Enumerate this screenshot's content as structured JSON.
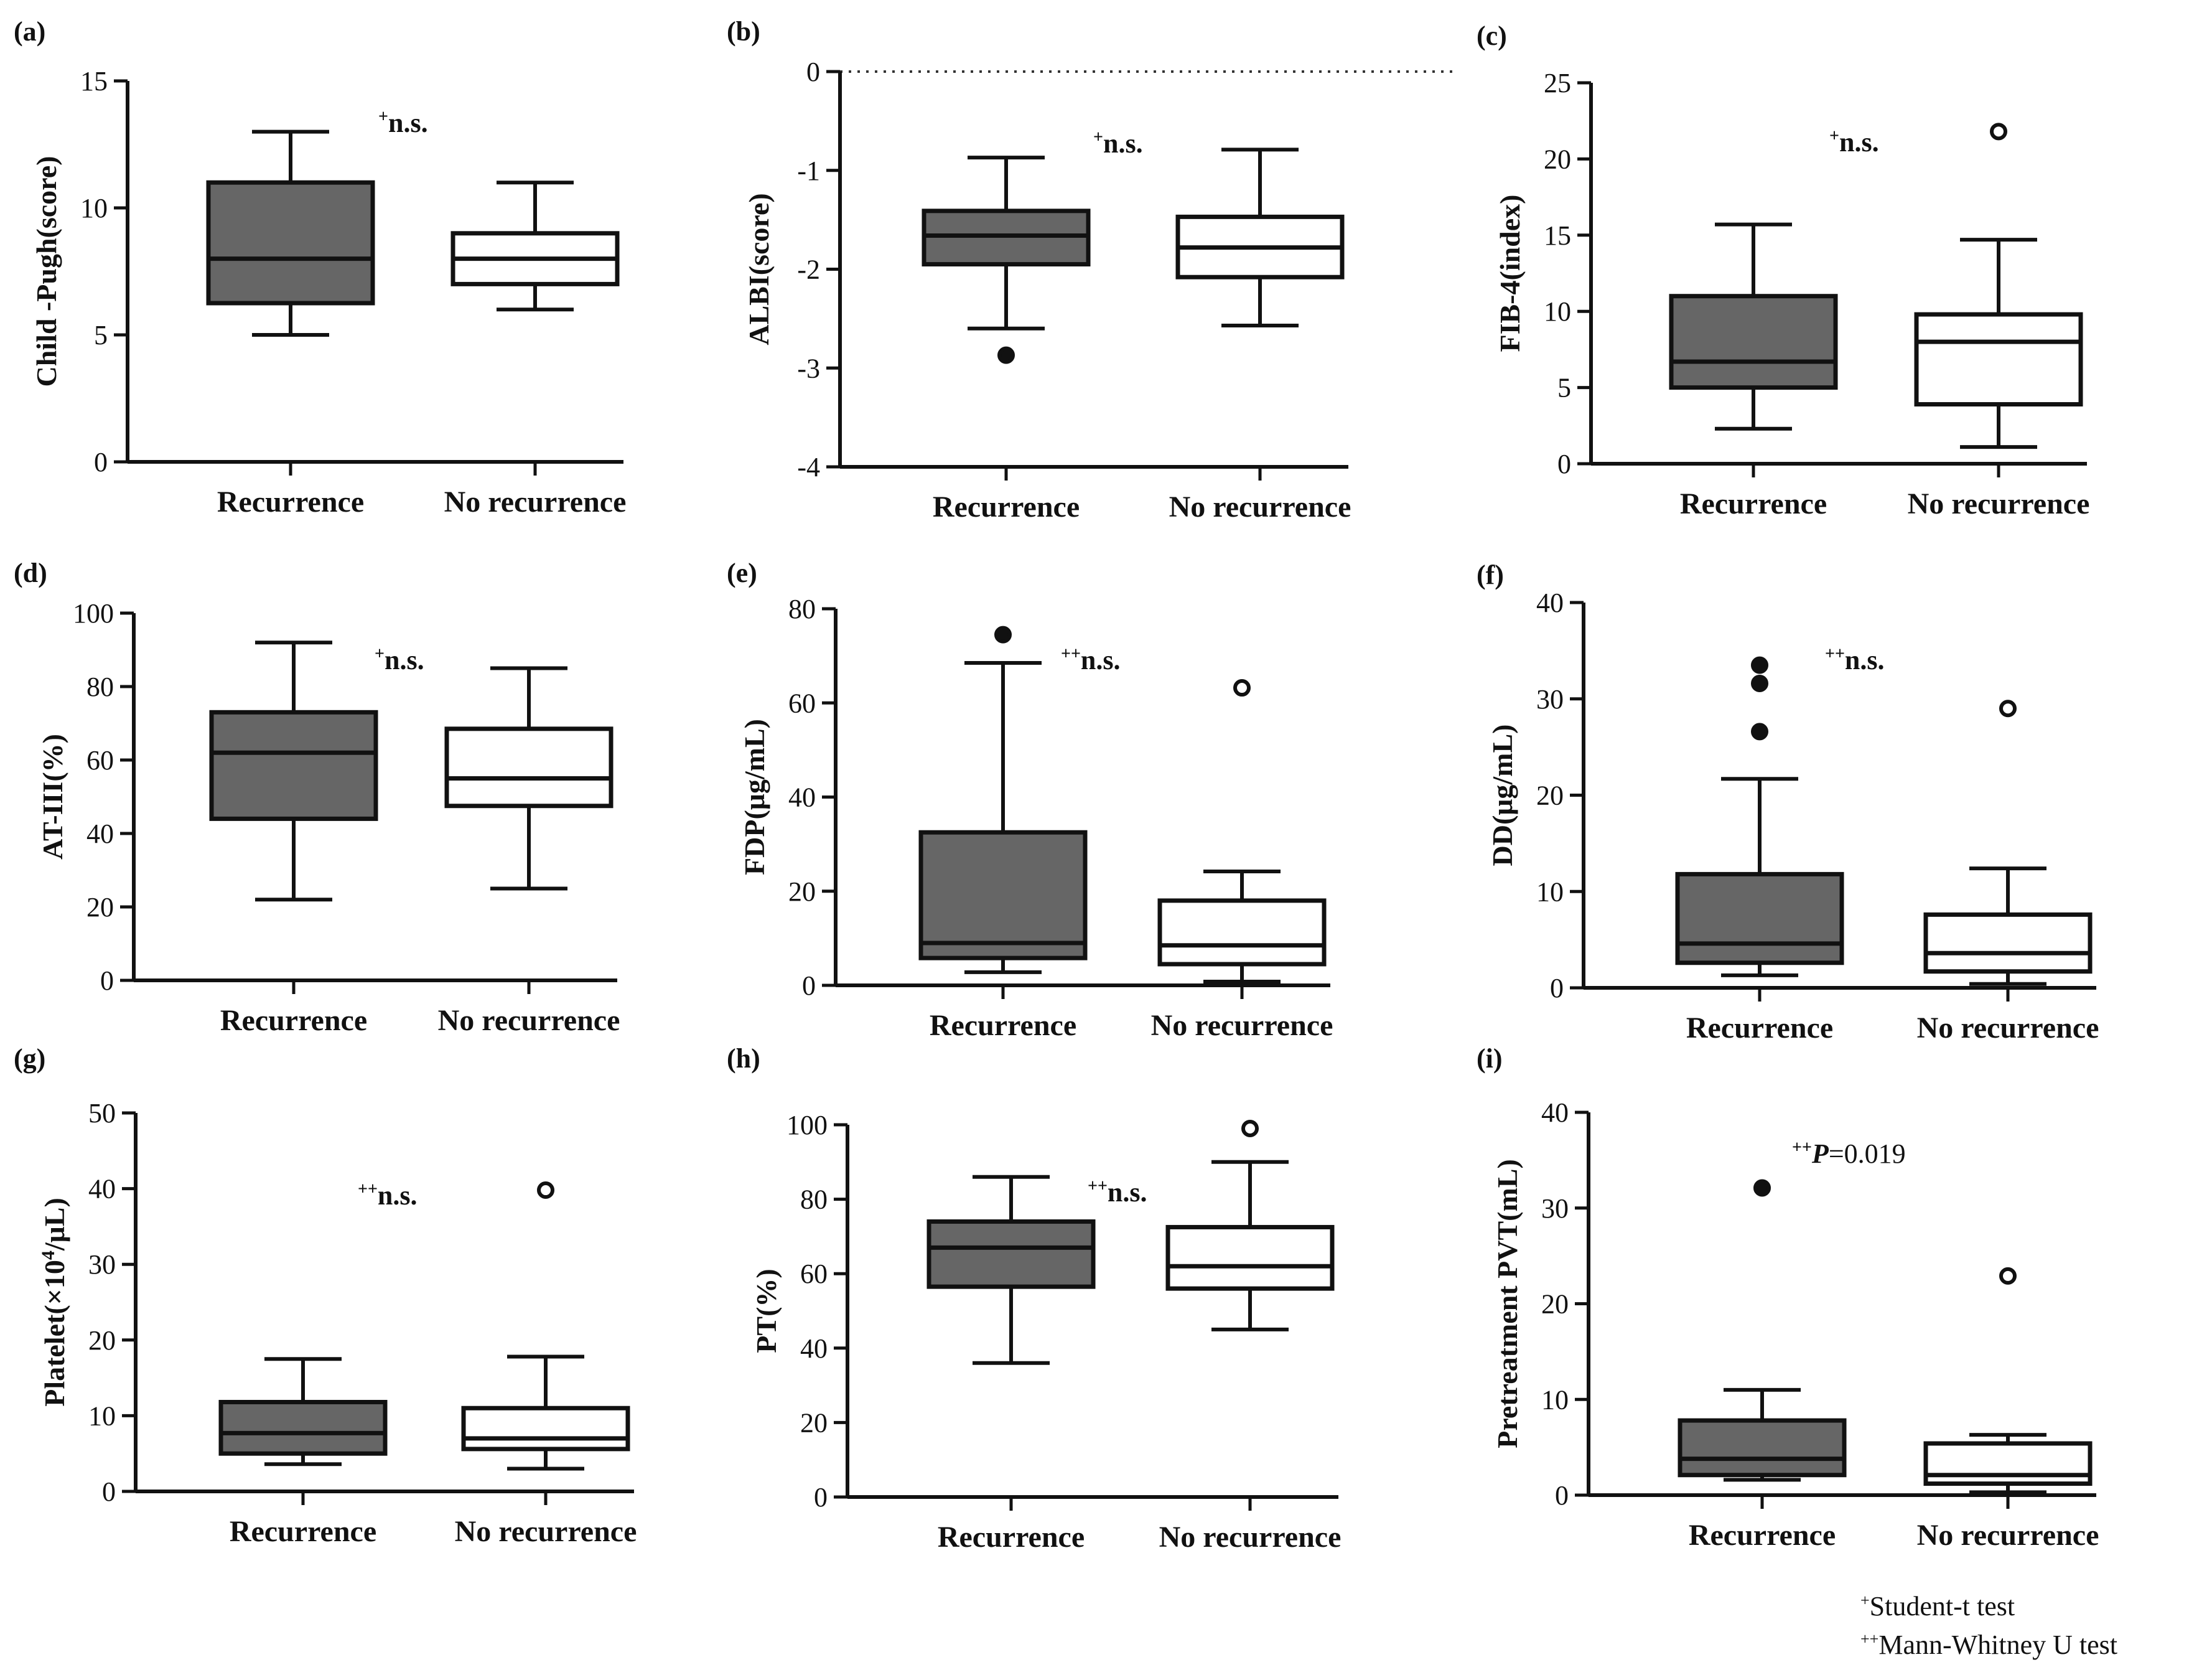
{
  "colors": {
    "recurrence_fill": "#666666",
    "no_recurrence_fill": "#ffffff",
    "stroke": "#111111"
  },
  "footnotes": [
    {
      "mark": "+",
      "text": "Student-t test"
    },
    {
      "mark": "++",
      "text": "Mann-Whitney U test"
    }
  ],
  "chart_data": [
    {
      "panel": "(a)",
      "type": "boxplot",
      "ylabel": "Child -Pugh(score)",
      "ylim": [
        0,
        15
      ],
      "yticks": [
        0,
        5,
        10,
        15
      ],
      "categories": [
        "Recurrence",
        "No recurrence"
      ],
      "annotation": {
        "mark": "+",
        "text": "n.s.",
        "italic_p": false
      },
      "series": [
        {
          "name": "Recurrence",
          "min": 5,
          "q1": 6.25,
          "median": 8,
          "q3": 11,
          "max": 13,
          "outliers": [],
          "filled": true
        },
        {
          "name": "No recurrence",
          "min": 6,
          "q1": 7,
          "median": 8,
          "q3": 9,
          "max": 11,
          "outliers": [],
          "filled": false
        }
      ]
    },
    {
      "panel": "(b)",
      "type": "boxplot",
      "ylabel": "ALBI(score)",
      "ylim": [
        -4,
        0
      ],
      "yticks": [
        -4,
        -3,
        -2,
        -1,
        0
      ],
      "zero_line": true,
      "categories": [
        "Recurrence",
        "No recurrence"
      ],
      "annotation": {
        "mark": "+",
        "text": "n.s.",
        "italic_p": false
      },
      "series": [
        {
          "name": "Recurrence",
          "min": -2.6,
          "q1": -1.95,
          "median": -1.66,
          "q3": -1.41,
          "max": -0.87,
          "outliers": [
            -2.87
          ],
          "filled": true
        },
        {
          "name": "No recurrence",
          "min": -2.57,
          "q1": -2.08,
          "median": -1.78,
          "q3": -1.47,
          "max": -0.79,
          "outliers": [],
          "filled": false
        }
      ]
    },
    {
      "panel": "(c)",
      "type": "boxplot",
      "ylabel": "FIB-4(index)",
      "ylim": [
        0,
        25
      ],
      "yticks": [
        0,
        5,
        10,
        15,
        20,
        25
      ],
      "categories": [
        "Recurrence",
        "No recurrence"
      ],
      "annotation": {
        "mark": "+",
        "text": "n.s.",
        "italic_p": false
      },
      "series": [
        {
          "name": "Recurrence",
          "min": 2.3,
          "q1": 5,
          "median": 6.7,
          "q3": 11,
          "max": 15.7,
          "outliers": [],
          "filled": true
        },
        {
          "name": "No recurrence",
          "min": 1.1,
          "q1": 3.9,
          "median": 8,
          "q3": 9.8,
          "max": 14.7,
          "outliers": [
            21.8
          ],
          "filled": false
        }
      ]
    },
    {
      "panel": "(d)",
      "type": "boxplot",
      "ylabel": "AT-III(%)",
      "ylim": [
        0,
        100
      ],
      "yticks": [
        0,
        20,
        40,
        60,
        80,
        100
      ],
      "categories": [
        "Recurrence",
        "No recurrence"
      ],
      "annotation": {
        "mark": "+",
        "text": "n.s.",
        "italic_p": false
      },
      "series": [
        {
          "name": "Recurrence",
          "min": 22,
          "q1": 44,
          "median": 62,
          "q3": 73,
          "max": 92,
          "outliers": [],
          "filled": true
        },
        {
          "name": "No recurrence",
          "min": 25,
          "q1": 47.5,
          "median": 55,
          "q3": 68.5,
          "max": 85,
          "outliers": [],
          "filled": false
        }
      ]
    },
    {
      "panel": "(e)",
      "type": "boxplot",
      "ylabel": "FDP(μg/mL)",
      "ylim": [
        0,
        80
      ],
      "yticks": [
        0,
        20,
        40,
        60,
        80
      ],
      "categories": [
        "Recurrence",
        "No recurrence"
      ],
      "annotation": {
        "mark": "++",
        "text": "n.s.",
        "italic_p": false
      },
      "series": [
        {
          "name": "Recurrence",
          "min": 2.8,
          "q1": 5.8,
          "median": 9,
          "q3": 32.5,
          "max": 68.5,
          "outliers": [
            74.5
          ],
          "filled": true
        },
        {
          "name": "No recurrence",
          "min": 0.8,
          "q1": 4.5,
          "median": 8.5,
          "q3": 18,
          "max": 24.2,
          "outliers": [
            63.2
          ],
          "filled": false
        }
      ]
    },
    {
      "panel": "(f)",
      "type": "boxplot",
      "ylabel": "DD(μg/mL)",
      "ylim": [
        0,
        40
      ],
      "yticks": [
        0,
        10,
        20,
        30,
        40
      ],
      "categories": [
        "Recurrence",
        "No recurrence"
      ],
      "annotation": {
        "mark": "++",
        "text": "n.s.",
        "italic_p": false
      },
      "series": [
        {
          "name": "Recurrence",
          "min": 1.3,
          "q1": 2.6,
          "median": 4.6,
          "q3": 11.8,
          "max": 21.7,
          "outliers": [
            33.5,
            31.6,
            26.6
          ],
          "filled": true
        },
        {
          "name": "No recurrence",
          "min": 0.4,
          "q1": 1.7,
          "median": 3.6,
          "q3": 7.6,
          "max": 12.4,
          "outliers": [
            29
          ],
          "filled": false
        }
      ]
    },
    {
      "panel": "(g)",
      "type": "boxplot",
      "ylabel": "Platelet(×10",
      "ylabel_sup": "4",
      "ylabel_tail": "/μL)",
      "ylim": [
        0,
        50
      ],
      "yticks": [
        0,
        10,
        20,
        30,
        40,
        50
      ],
      "categories": [
        "Recurrence",
        "No recurrence"
      ],
      "annotation": {
        "mark": "++",
        "text": "n.s.",
        "italic_p": false
      },
      "series": [
        {
          "name": "Recurrence",
          "min": 3.6,
          "q1": 5,
          "median": 7.7,
          "q3": 11.8,
          "max": 17.5,
          "outliers": [],
          "filled": true
        },
        {
          "name": "No recurrence",
          "min": 3,
          "q1": 5.6,
          "median": 7,
          "q3": 11,
          "max": 17.8,
          "outliers": [
            39.8
          ],
          "filled": false
        }
      ]
    },
    {
      "panel": "(h)",
      "type": "boxplot",
      "ylabel": "PT(%)",
      "ylim": [
        0,
        100
      ],
      "yticks": [
        0,
        20,
        40,
        60,
        80,
        100
      ],
      "categories": [
        "Recurrence",
        "No recurrence"
      ],
      "annotation": {
        "mark": "++",
        "text": "n.s.",
        "italic_p": false
      },
      "series": [
        {
          "name": "Recurrence",
          "min": 36,
          "q1": 56.5,
          "median": 67,
          "q3": 74,
          "max": 86,
          "outliers": [],
          "filled": true
        },
        {
          "name": "No recurrence",
          "min": 45,
          "q1": 56,
          "median": 62,
          "q3": 72.5,
          "max": 90,
          "outliers": [
            99
          ],
          "filled": false
        }
      ]
    },
    {
      "panel": "(i)",
      "type": "boxplot",
      "ylabel": "Pretreatment PVT(mL)",
      "ylim": [
        0,
        40
      ],
      "yticks": [
        0,
        10,
        20,
        30,
        40
      ],
      "categories": [
        "Recurrence",
        "No recurrence"
      ],
      "annotation": {
        "mark": "++",
        "text": "=0.019",
        "italic_p": true,
        "p_letter": "P"
      },
      "series": [
        {
          "name": "Recurrence",
          "min": 1.6,
          "q1": 2.1,
          "median": 3.8,
          "q3": 7.8,
          "max": 11,
          "outliers": [
            32.1
          ],
          "filled": true
        },
        {
          "name": "No recurrence",
          "min": 0.3,
          "q1": 1.2,
          "median": 2.1,
          "q3": 5.4,
          "max": 6.3,
          "outliers": [
            22.9
          ],
          "filled": false
        }
      ]
    }
  ]
}
